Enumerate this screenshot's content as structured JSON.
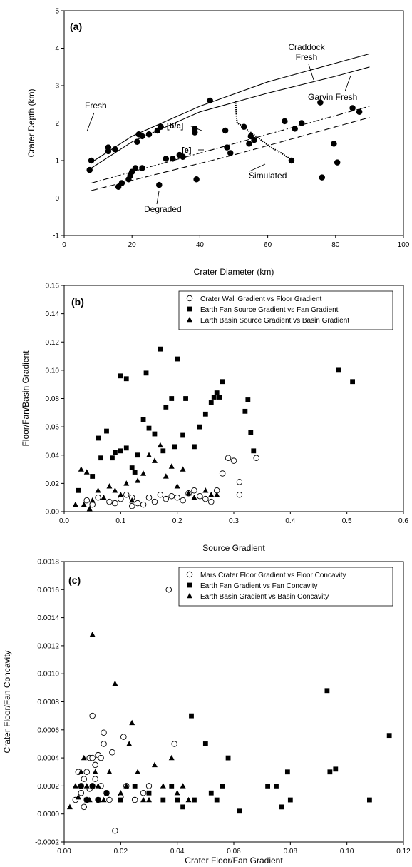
{
  "chart_data": [
    {
      "panel": "(a)",
      "type": "scatter",
      "xlabel": "Crater Diameter (km)",
      "ylabel": "Crater Depth (km)",
      "xlim": [
        0,
        100
      ],
      "ylim": [
        -1,
        5
      ],
      "xticks": [
        "0",
        "20",
        "40",
        "60",
        "80",
        "100"
      ],
      "yticks": [
        "-1",
        "0",
        "1",
        "2",
        "3",
        "4",
        "5"
      ],
      "grid": false,
      "legend": "none",
      "points": {
        "x": [
          7.5,
          8,
          13,
          13,
          15,
          16,
          17,
          19,
          19.5,
          20,
          21,
          21.5,
          22,
          23,
          23,
          25,
          27.5,
          28,
          28.5,
          30,
          32,
          34,
          35,
          38.5,
          38.5,
          39,
          43,
          47.5,
          48,
          49,
          53,
          54.5,
          55,
          56,
          65,
          67,
          68,
          70,
          75.5,
          76,
          79.5,
          80.5,
          85,
          87
        ],
        "y": [
          0.75,
          1.0,
          1.25,
          1.35,
          1.3,
          0.3,
          0.4,
          0.5,
          0.6,
          0.7,
          0.8,
          1.5,
          1.7,
          0.8,
          1.65,
          1.7,
          1.8,
          0.35,
          1.9,
          1.05,
          1.05,
          1.15,
          1.1,
          1.75,
          1.85,
          0.5,
          2.6,
          1.8,
          1.35,
          1.2,
          1.9,
          1.45,
          1.65,
          1.55,
          2.05,
          1.0,
          1.85,
          2.0,
          2.55,
          0.55,
          1.45,
          0.95,
          2.4,
          2.3
        ]
      },
      "curves": [
        {
          "name": "Craddock Fresh",
          "style": "solid",
          "x": [
            8,
            20,
            40,
            60,
            80,
            90
          ],
          "y": [
            0.95,
            1.65,
            2.45,
            3.1,
            3.6,
            3.85
          ]
        },
        {
          "name": "Garvin Fresh",
          "style": "solid",
          "x": [
            8,
            20,
            40,
            60,
            80,
            90
          ],
          "y": [
            0.8,
            1.5,
            2.3,
            2.8,
            3.25,
            3.5
          ]
        },
        {
          "name": "[b/c]",
          "style": "dash-dot",
          "x": [
            8,
            30,
            50,
            70,
            90
          ],
          "y": [
            0.4,
            0.95,
            1.45,
            1.95,
            2.45
          ]
        },
        {
          "name": "[e]",
          "style": "dashed",
          "x": [
            8,
            30,
            50,
            70,
            90
          ],
          "y": [
            0.2,
            0.7,
            1.15,
            1.65,
            2.15
          ]
        },
        {
          "name": "Simulated",
          "style": "dotted",
          "x": [
            50.5,
            50.8,
            51,
            52,
            55,
            58,
            61,
            64,
            66.5
          ],
          "y": [
            2.6,
            2.15,
            2.0,
            1.95,
            1.75,
            1.55,
            1.35,
            1.2,
            1.05
          ]
        }
      ],
      "annotations": [
        "Craddock\nFresh",
        "Garvin Fresh",
        "Fresh",
        "[b/c]",
        "[e]",
        "Simulated",
        "Degraded"
      ]
    },
    {
      "panel": "(b)",
      "type": "scatter",
      "xlabel": "Source Gradient",
      "ylabel": "Floor/Fan/Basin Gradient",
      "xlim": [
        0,
        0.6
      ],
      "ylim": [
        0,
        0.16
      ],
      "xticks": [
        "0.0",
        "0.1",
        "0.2",
        "0.3",
        "0.4",
        "0.5",
        "0.6"
      ],
      "yticks": [
        "0.00",
        "0.02",
        "0.04",
        "0.06",
        "0.08",
        "0.10",
        "0.12",
        "0.14",
        "0.16"
      ],
      "grid": false,
      "legend": "top-right",
      "series": [
        {
          "name": "Crater Wall Gradient vs Floor Gradient",
          "marker": "circle-open",
          "x": [
            0.04,
            0.05,
            0.06,
            0.08,
            0.09,
            0.1,
            0.11,
            0.12,
            0.12,
            0.13,
            0.14,
            0.15,
            0.16,
            0.17,
            0.18,
            0.19,
            0.2,
            0.21,
            0.22,
            0.23,
            0.24,
            0.25,
            0.26,
            0.27,
            0.28,
            0.29,
            0.3,
            0.31,
            0.31,
            0.34
          ],
          "y": [
            0.008,
            0.005,
            0.01,
            0.007,
            0.006,
            0.009,
            0.012,
            0.004,
            0.01,
            0.006,
            0.005,
            0.01,
            0.007,
            0.012,
            0.009,
            0.011,
            0.01,
            0.008,
            0.013,
            0.015,
            0.011,
            0.009,
            0.007,
            0.015,
            0.027,
            0.038,
            0.036,
            0.012,
            0.021,
            0.038
          ]
        },
        {
          "name": "Earth Fan Source Gradient vs Fan Gradient",
          "marker": "square-filled",
          "x": [
            0.025,
            0.05,
            0.06,
            0.065,
            0.075,
            0.085,
            0.09,
            0.1,
            0.1,
            0.11,
            0.11,
            0.12,
            0.125,
            0.13,
            0.14,
            0.145,
            0.15,
            0.16,
            0.17,
            0.175,
            0.18,
            0.19,
            0.195,
            0.2,
            0.21,
            0.215,
            0.23,
            0.24,
            0.25,
            0.26,
            0.265,
            0.27,
            0.275,
            0.28,
            0.32,
            0.325,
            0.33,
            0.335,
            0.485,
            0.51
          ],
          "y": [
            0.015,
            0.025,
            0.052,
            0.038,
            0.057,
            0.038,
            0.042,
            0.096,
            0.043,
            0.094,
            0.045,
            0.031,
            0.028,
            0.04,
            0.065,
            0.098,
            0.059,
            0.055,
            0.115,
            0.043,
            0.074,
            0.08,
            0.046,
            0.108,
            0.054,
            0.08,
            0.046,
            0.06,
            0.069,
            0.077,
            0.081,
            0.084,
            0.081,
            0.092,
            0.071,
            0.079,
            0.056,
            0.043,
            0.1,
            0.092
          ]
        },
        {
          "name": "Earth Basin Source Gradient vs Basin Gradient",
          "marker": "triangle-filled",
          "x": [
            0.02,
            0.03,
            0.035,
            0.04,
            0.045,
            0.05,
            0.06,
            0.07,
            0.08,
            0.09,
            0.1,
            0.11,
            0.12,
            0.13,
            0.14,
            0.15,
            0.16,
            0.17,
            0.18,
            0.19,
            0.2,
            0.21,
            0.22,
            0.23,
            0.25,
            0.26,
            0.27
          ],
          "y": [
            0.005,
            0.03,
            0.005,
            0.028,
            0.002,
            0.008,
            0.015,
            0.01,
            0.018,
            0.015,
            0.012,
            0.02,
            0.008,
            0.022,
            0.027,
            0.04,
            0.036,
            0.047,
            0.025,
            0.032,
            0.018,
            0.03,
            0.013,
            0.01,
            0.015,
            0.012,
            0.012
          ]
        }
      ]
    },
    {
      "panel": "(c)",
      "type": "scatter",
      "xlabel": "Crater Floor/Fan Gradient",
      "ylabel": "Crater Floor/Fan Concavity",
      "xlim": [
        0,
        0.12
      ],
      "ylim": [
        -0.0002,
        0.0018
      ],
      "xticks": [
        "0.00",
        "0.02",
        "0.04",
        "0.06",
        "0.08",
        "0.10",
        "0.12"
      ],
      "yticks": [
        "-0.0002",
        "0.0000",
        "0.0002",
        "0.0004",
        "0.0006",
        "0.0008",
        "0.0010",
        "0.0012",
        "0.0014",
        "0.0016",
        "0.0018"
      ],
      "grid": false,
      "legend": "top-right",
      "series": [
        {
          "name": "Mars Crater Floor Gradient vs Floor Concavity",
          "marker": "circle-open",
          "x": [
            0.004,
            0.005,
            0.006,
            0.006,
            0.007,
            0.007,
            0.008,
            0.008,
            0.009,
            0.009,
            0.01,
            0.01,
            0.01,
            0.011,
            0.011,
            0.012,
            0.012,
            0.013,
            0.013,
            0.014,
            0.014,
            0.015,
            0.016,
            0.017,
            0.018,
            0.02,
            0.021,
            0.022,
            0.025,
            0.028,
            0.03,
            0.037,
            0.039
          ],
          "y": [
            0.0001,
            0.0003,
            0.00015,
            0.0002,
            5e-05,
            0.00025,
            0.0003,
            0.0001,
            0.00018,
            0.0004,
            0.0007,
            0.0002,
            0.0004,
            0.00025,
            0.00035,
            0.0001,
            0.00042,
            0.0002,
            0.0004,
            0.0005,
            0.00058,
            0.00015,
            0.0001,
            0.00044,
            -0.00012,
            0.00012,
            0.00055,
            0.0002,
            0.0001,
            0.00015,
            0.0002,
            0.0016,
            0.0005
          ]
        },
        {
          "name": "Earth Fan Gradient vs Fan Concavity",
          "marker": "square-filled",
          "x": [
            0.006,
            0.008,
            0.01,
            0.012,
            0.015,
            0.02,
            0.025,
            0.03,
            0.035,
            0.038,
            0.04,
            0.042,
            0.045,
            0.046,
            0.05,
            0.052,
            0.054,
            0.056,
            0.058,
            0.062,
            0.072,
            0.075,
            0.077,
            0.079,
            0.08,
            0.093,
            0.094,
            0.096,
            0.108,
            0.115
          ],
          "y": [
            0.0002,
            0.0001,
            0.0002,
            0.0001,
            0.00015,
            0.0001,
            0.0002,
            0.00015,
            0.0001,
            0.0002,
            0.0001,
            5e-05,
            0.0007,
            0.0001,
            0.0005,
            0.00015,
            0.0001,
            0.0002,
            0.0004,
            2e-05,
            0.0002,
            0.0002,
            5e-05,
            0.0003,
            0.0001,
            0.00088,
            0.0003,
            0.00032,
            0.0001,
            0.00056
          ]
        },
        {
          "name": "Earth Basin Gradient vs Basin Concavity",
          "marker": "triangle-filled",
          "x": [
            0.002,
            0.004,
            0.005,
            0.006,
            0.007,
            0.008,
            0.009,
            0.01,
            0.011,
            0.012,
            0.014,
            0.016,
            0.018,
            0.02,
            0.022,
            0.023,
            0.024,
            0.026,
            0.028,
            0.03,
            0.032,
            0.035,
            0.038,
            0.04,
            0.042,
            0.044
          ],
          "y": [
            5e-05,
            0.0002,
            0.00012,
            0.0003,
            0.0004,
            0.0002,
            0.0001,
            0.00128,
            0.0003,
            0.0002,
            0.0001,
            0.0003,
            0.00093,
            0.00015,
            0.0002,
            0.0005,
            0.00065,
            0.0003,
            0.0001,
            0.0001,
            0.00035,
            0.0002,
            0.0004,
            0.00015,
            0.0002,
            0.0001
          ]
        }
      ]
    }
  ]
}
